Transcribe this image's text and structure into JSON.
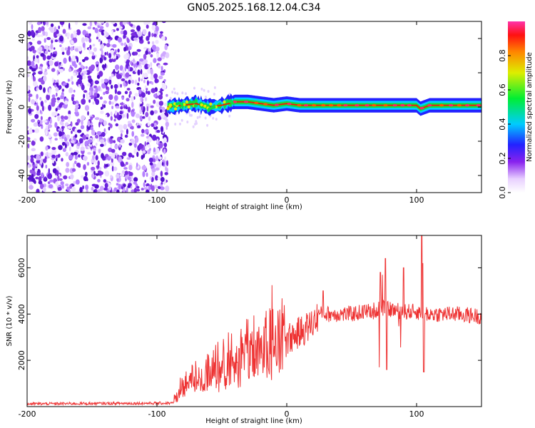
{
  "title": "GN05.2025.168.12.04.C34",
  "chart_data": [
    {
      "type": "heatmap",
      "title": "GN05.2025.168.12.04.C34",
      "xlabel": "Height of straight line (km)",
      "ylabel": "Frequency (Hz)",
      "xlim": [
        -200,
        150
      ],
      "ylim": [
        -50,
        50
      ],
      "xticks": [
        "-200",
        "-100",
        "0",
        "100"
      ],
      "yticks": [
        "-40",
        "-20",
        "0",
        "20",
        "40"
      ],
      "noise_region_x": [
        -200,
        -92
      ],
      "ridge": {
        "x": [
          -92,
          -80,
          -70,
          -60,
          -50,
          -40,
          -30,
          -20,
          -10,
          0,
          10,
          20,
          40,
          60,
          80,
          100,
          103,
          110,
          150
        ],
        "freq_hz": [
          0,
          1,
          2,
          0,
          1,
          3,
          3,
          2,
          1,
          2,
          1,
          1,
          1,
          1,
          1,
          1,
          -1,
          1,
          1
        ]
      },
      "colorbar": {
        "label": "Normalized spectral amplitude",
        "range": [
          0,
          1
        ],
        "ticks": [
          "0.0",
          "0.2",
          "0.4",
          "0.6",
          "0.8"
        ]
      }
    },
    {
      "type": "line",
      "xlabel": "Height of straight line (km)",
      "ylabel": "SNR (10 * v/v)",
      "xlim": [
        -200,
        150
      ],
      "ylim": [
        0,
        7400
      ],
      "xticks": [
        "-200",
        "-100",
        "0",
        "100"
      ],
      "yticks": [
        "2000",
        "4000",
        "6000"
      ],
      "color": "#ee3333",
      "envelope": {
        "x": [
          -200,
          -88,
          -85,
          -80,
          -70,
          -60,
          -50,
          -40,
          -30,
          -20,
          -10,
          0,
          10,
          20,
          25,
          30,
          40,
          50,
          60,
          70,
          80,
          90,
          100,
          110,
          120,
          130,
          140,
          150
        ],
        "snr": [
          120,
          150,
          400,
          900,
          1000,
          1200,
          1400,
          1700,
          2000,
          2300,
          2600,
          2900,
          3200,
          3600,
          4000,
          4000,
          4000,
          4000,
          4100,
          4200,
          4200,
          4100,
          4100,
          4000,
          4000,
          4000,
          3950,
          3900
        ]
      },
      "spikes": [
        {
          "x": 28,
          "snr": 5000
        },
        {
          "x": 72,
          "snr": 5800
        },
        {
          "x": 76,
          "snr": 6400
        },
        {
          "x": 90,
          "snr": 6000
        },
        {
          "x": 104,
          "snr": 7400
        },
        {
          "x": 105,
          "snr": 6200
        },
        {
          "x": 71,
          "snr": 1700
        },
        {
          "x": 77,
          "snr": 1600
        },
        {
          "x": 105.5,
          "snr": 1500
        }
      ]
    }
  ]
}
